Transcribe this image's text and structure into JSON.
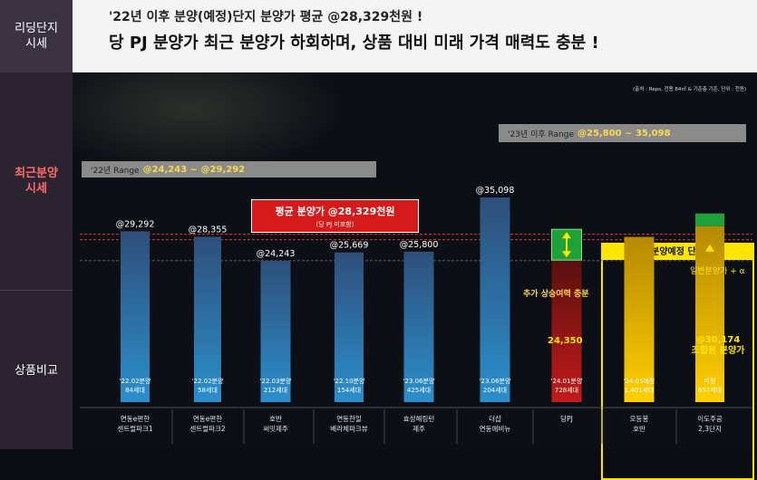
{
  "sidebar": {
    "section1": "리딩단지\n시세",
    "section2": "최근분양\n시세",
    "section3": "상품비교"
  },
  "header": {
    "line1": "'22년 이후 분양(예정)단지 분양가 평균 @28,329천원 !",
    "line2": "당 PJ 분양가 최근 분양가 하회하며, 상품 대비 미래 가격 매력도 충분 !"
  },
  "source": "(출처 : Reps, 전용 84㎡ & 기준층 기준, 단위 : 천원)",
  "ranges": {
    "r22_label": "'22년 Range",
    "r22_value": "@24,243 ~ @29,292",
    "r23_label": "'23년 이후 Range",
    "r23_value": "@25,800 ~ 35,098"
  },
  "avg_box": {
    "title": "평균 분양가 @28,329천원",
    "sub": "(당 PJ 미포함)"
  },
  "plan_title": "분양예정 단지",
  "extra_label": "추가 상승여력 충분",
  "green_label": "일반분양가 + α",
  "pj_value_label": "24,350",
  "j_value_label": "@30,174\n조합원 분양가",
  "colors": {
    "bar_blue": "#2a86c2",
    "bar_red": "#b0181a",
    "bar_gold": "#f0c000",
    "accent_yellow": "#ffe600",
    "avg_line": "#e53030"
  },
  "chart_data": {
    "type": "bar",
    "ylabel": "",
    "average": 28329,
    "categories": [
      "연동e편한 센트럴파크1",
      "연동e편한 센트럴파크2",
      "호반 써밋제주",
      "연동한일 베라체파크뷰",
      "효성해링턴 제주",
      "더샵 연동애비뉴",
      "당PJ",
      "오등봉 호반",
      "이도주공 2,3단지"
    ],
    "values": [
      29292,
      28355,
      24243,
      25669,
      25800,
      35098,
      24350,
      28329,
      30174
    ],
    "top_labels": [
      "@29,292",
      "@28,355",
      "@24,243",
      "@25,669",
      "@25,800",
      "@35,098",
      "",
      "",
      ""
    ],
    "bottom_labels": [
      [
        "'22.02분양",
        "84세대"
      ],
      [
        "'22.02분양",
        "58세대"
      ],
      [
        "'22.03분양",
        "212세대"
      ],
      [
        "'22.10분양",
        "154세대"
      ],
      [
        "'23.06분양",
        "425세대"
      ],
      [
        "'23.06분양",
        "204세대"
      ],
      [
        "'24.01분양",
        "728세대"
      ],
      [
        "'24.05예정",
        "1,401세대"
      ],
      [
        "미정",
        "857세대"
      ]
    ],
    "x_labels": [
      [
        "연동e편한",
        "센트럴파크1"
      ],
      [
        "연동e편한",
        "센트럴파크2"
      ],
      [
        "호반",
        "써밋제주"
      ],
      [
        "연동한일",
        "베라체파크뷰"
      ],
      [
        "효성해링턴",
        "제주"
      ],
      [
        "더샵",
        "연동애비뉴"
      ],
      [
        "당PJ",
        ""
      ],
      [
        "오등봉",
        "호반"
      ],
      [
        "이도주공",
        "2,3단지"
      ]
    ],
    "series_style": [
      "blue",
      "blue",
      "blue",
      "blue",
      "blue",
      "blue",
      "red",
      "gold",
      "gold"
    ]
  }
}
